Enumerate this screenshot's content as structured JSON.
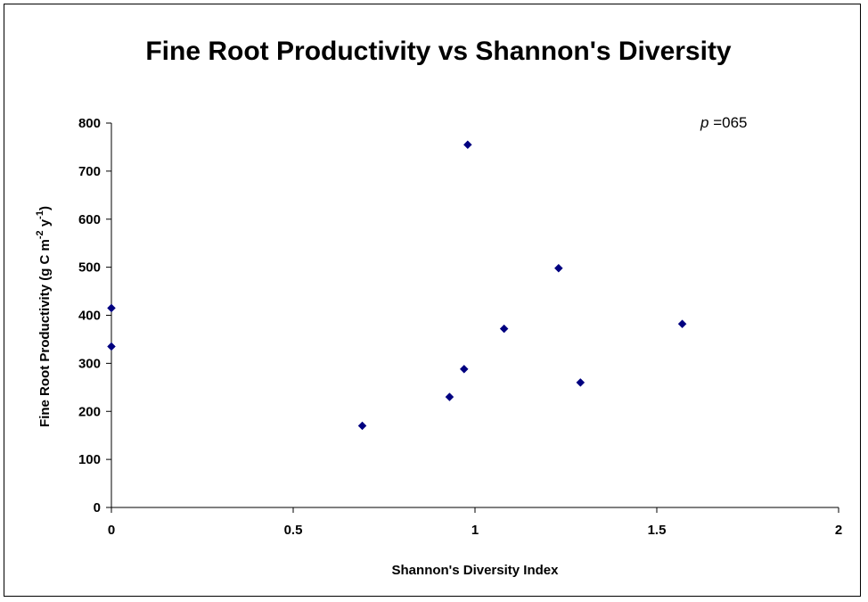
{
  "chart_data": {
    "type": "scatter",
    "title": "Fine Root Productivity vs Shannon's Diversity",
    "xlabel": "Shannon's Diversity Index",
    "ylabel": {
      "main": "Fine Root Productivity (g C m",
      "exp1": "-2",
      "mid": " y",
      "exp2": "-1",
      "end": ")"
    },
    "annotation": {
      "italic": "p",
      "text": " =065"
    },
    "xlim": [
      0,
      2
    ],
    "ylim": [
      0,
      800
    ],
    "xticks": [
      0,
      0.5,
      1,
      1.5,
      2
    ],
    "xtick_labels": [
      "0",
      "0.5",
      "1",
      "1.5",
      "2"
    ],
    "yticks": [
      0,
      100,
      200,
      300,
      400,
      500,
      600,
      700,
      800
    ],
    "ytick_labels": [
      "0",
      "100",
      "200",
      "300",
      "400",
      "500",
      "600",
      "700",
      "800"
    ],
    "marker_color": "#000080",
    "series": [
      {
        "points": [
          {
            "x": 0,
            "y": 415
          },
          {
            "x": 0,
            "y": 335
          },
          {
            "x": 0.69,
            "y": 170
          },
          {
            "x": 0.93,
            "y": 230
          },
          {
            "x": 0.97,
            "y": 288
          },
          {
            "x": 0.98,
            "y": 755
          },
          {
            "x": 1.08,
            "y": 372
          },
          {
            "x": 1.23,
            "y": 498
          },
          {
            "x": 1.29,
            "y": 260
          },
          {
            "x": 1.57,
            "y": 382
          }
        ]
      }
    ]
  }
}
